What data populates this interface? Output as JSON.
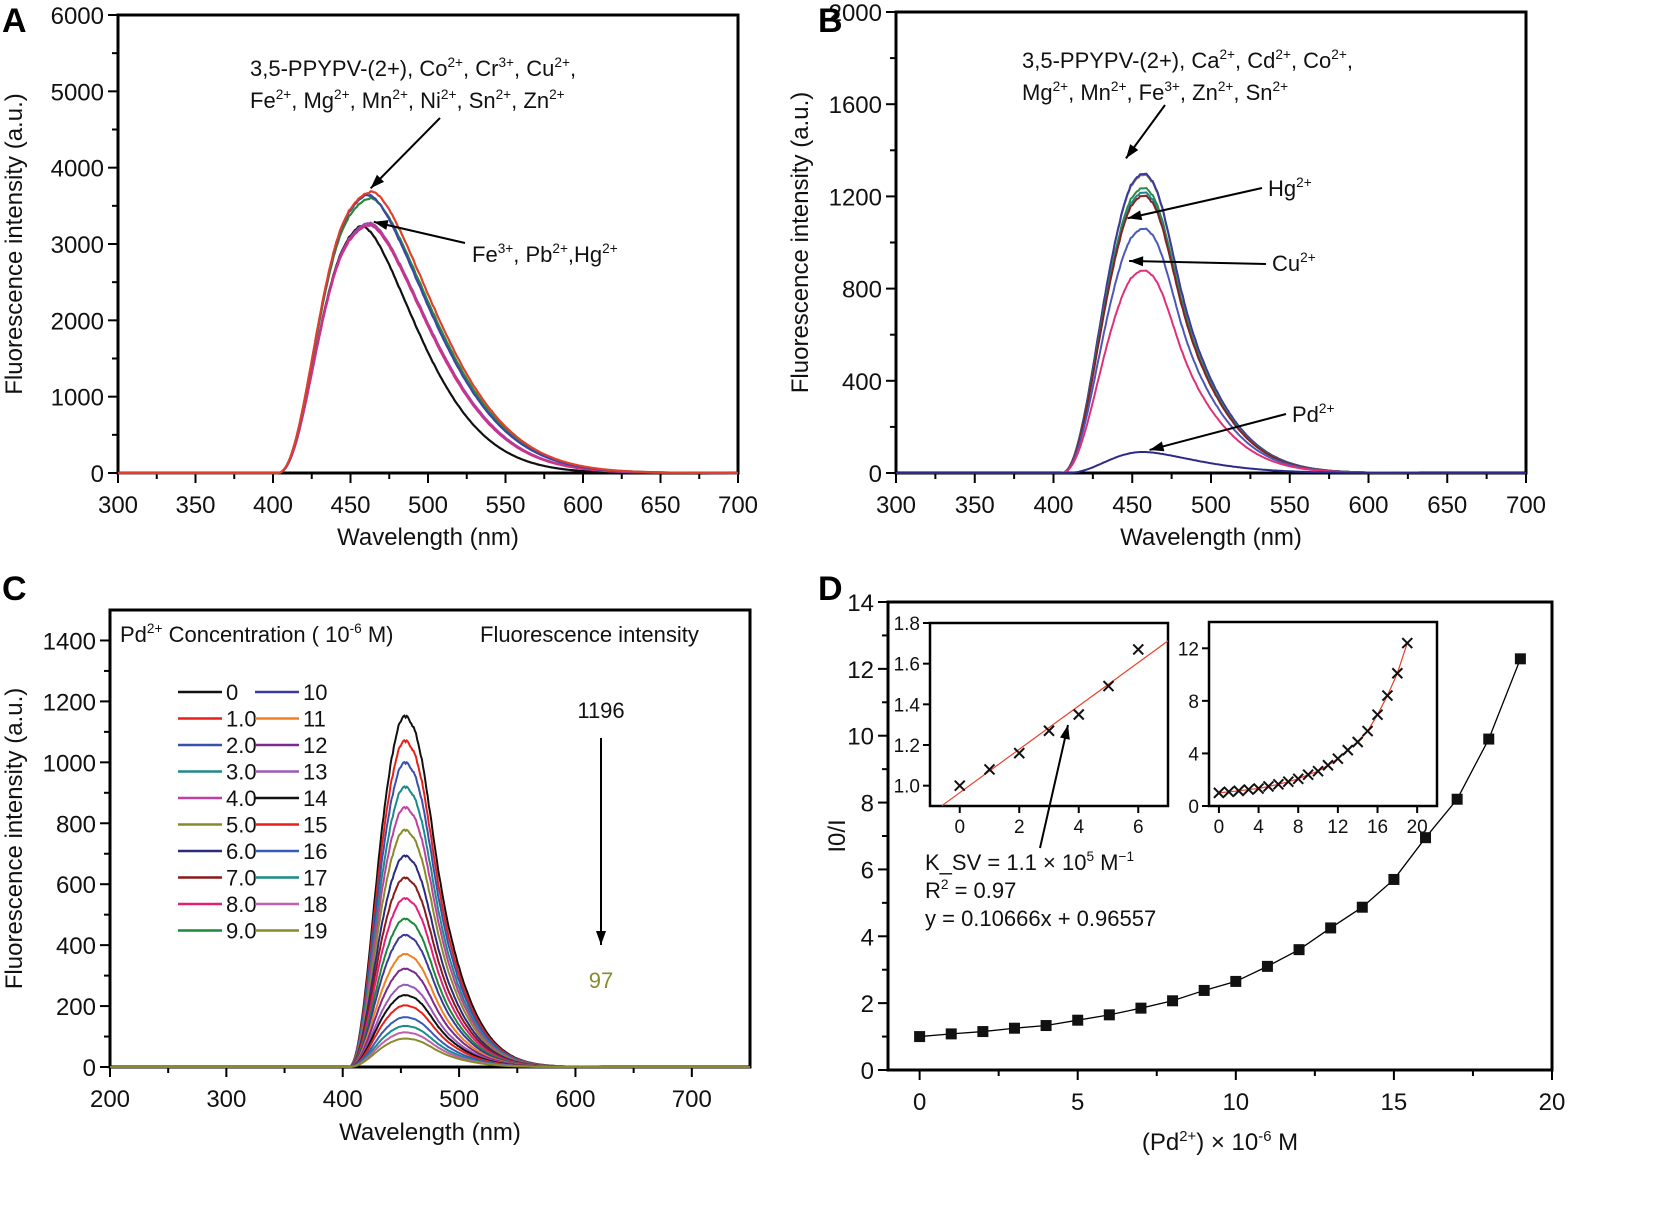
{
  "chart_data": [
    {
      "panel": "A",
      "type": "line",
      "xlabel": "Wavelength (nm)",
      "ylabel": "Fluorescence intensity (a.u.)",
      "xlim": [
        300,
        700
      ],
      "ylim": [
        0,
        6000
      ],
      "xticks": [
        300,
        350,
        400,
        450,
        500,
        550,
        600,
        650,
        700
      ],
      "yticks": [
        0,
        1000,
        2000,
        3000,
        4000,
        5000,
        6000
      ],
      "annotations": [
        {
          "lines": [
            "3,5-PPYPV-(2+), Co^2+, Cr^3+, Cu^2+,",
            "Fe^2+, Mg^2+, Mn^2+, Ni^2+, Sn^2+, Zn^2+"
          ],
          "points_to_peak": 3720
        },
        {
          "lines": [
            "Fe^3+, Pb^2+,Hg^2+"
          ],
          "points_to_peak": 3300
        }
      ],
      "series": [
        {
          "name": "orange-red",
          "color": "#e0402a",
          "peak_x": 463,
          "peak": 3720,
          "width_scale": 1.0
        },
        {
          "name": "blue",
          "color": "#3a46a8",
          "peak_x": 460,
          "peak": 3700,
          "width_scale": 1.0
        },
        {
          "name": "green",
          "color": "#2a8a3a",
          "peak_x": 462,
          "peak": 3640,
          "width_scale": 1.0
        },
        {
          "name": "magenta",
          "color": "#d0308a",
          "peak_x": 461,
          "peak": 3290,
          "width_scale": 0.96
        },
        {
          "name": "purple",
          "color": "#9a4aa8",
          "peak_x": 461,
          "peak": 3320,
          "width_scale": 0.97
        },
        {
          "name": "black",
          "color": "#111111",
          "peak_x": 455,
          "peak": 3340,
          "width_scale": 0.9
        }
      ]
    },
    {
      "panel": "B",
      "type": "line",
      "xlabel": "Wavelength (nm)",
      "ylabel": "Fluorescence intensity (a.u.)",
      "xlim": [
        300,
        700
      ],
      "ylim": [
        0,
        2000
      ],
      "xticks": [
        300,
        350,
        400,
        450,
        500,
        550,
        600,
        650,
        700
      ],
      "yticks": [
        0,
        400,
        800,
        1200,
        1600,
        2000
      ],
      "annotations": [
        {
          "lines": [
            "3,5-PPYPV-(2+), Ca^2+, Cd^2+, Co^2+,",
            "Mg^2+, Mn^2+, Fe^3+, Zn^2+, Sn^2+"
          ],
          "points_to_peak": 1360
        },
        {
          "lines": [
            "Hg^2+"
          ],
          "points_to_peak": 1110
        },
        {
          "lines": [
            "Cu^2+"
          ],
          "points_to_peak": 920
        },
        {
          "lines": [
            "Pd^2+"
          ],
          "points_to_peak": 100
        }
      ],
      "series": [
        {
          "name": "top-group-olive",
          "color": "#8a7a30",
          "peak_x": 446,
          "peak": 1355
        },
        {
          "name": "top-group-blue",
          "color": "#3a3aa0",
          "peak_x": 446,
          "peak": 1360
        },
        {
          "name": "top-group-green",
          "color": "#2a8a4a",
          "peak_x": 446,
          "peak": 1295
        },
        {
          "name": "top-group-teal",
          "color": "#1a8a8a",
          "peak_x": 446,
          "peak": 1275
        },
        {
          "name": "top-group-brown",
          "color": "#8a2020",
          "peak_x": 446,
          "peak": 1260
        },
        {
          "name": "Hg2+",
          "color": "#4a58b8",
          "peak_x": 446,
          "peak": 1110
        },
        {
          "name": "Cu2+",
          "color": "#e0307a",
          "peak_x": 446,
          "peak": 920
        },
        {
          "name": "Pd2+",
          "color": "#2a2a8a",
          "peak_x": 450,
          "peak": 100
        }
      ]
    },
    {
      "panel": "C",
      "type": "line",
      "xlabel": "Wavelength (nm)",
      "ylabel": "Fluorescence intensity (a.u.)",
      "xlim": [
        200,
        750
      ],
      "ylim": [
        0,
        1500
      ],
      "xticks": [
        200,
        300,
        400,
        500,
        600,
        700
      ],
      "yticks": [
        0,
        200,
        400,
        600,
        800,
        1000,
        1200,
        1400
      ],
      "legend_title": "Pd^2+ Concentration ( 10^-6 M)",
      "legend_position": "top-left",
      "intensity_header": "Fluorescence intensity",
      "intensity_start": "1196",
      "intensity_end": "97",
      "series": [
        {
          "name": "0",
          "color": "#111111",
          "peak": 1196
        },
        {
          "name": "1.0",
          "color": "#e8201a",
          "peak": 1112
        },
        {
          "name": "2.0",
          "color": "#3a50b0",
          "peak": 1038
        },
        {
          "name": "3.0",
          "color": "#1a8a8a",
          "peak": 955
        },
        {
          "name": "4.0",
          "color": "#c040a0",
          "peak": 885
        },
        {
          "name": "5.0",
          "color": "#8a8a2a",
          "peak": 808
        },
        {
          "name": "6.0",
          "color": "#2a2a80",
          "peak": 720
        },
        {
          "name": "7.0",
          "color": "#8a1a1a",
          "peak": 645
        },
        {
          "name": "8.0",
          "color": "#e0207a",
          "peak": 575
        },
        {
          "name": "9.0",
          "color": "#1a8a3a",
          "peak": 505
        },
        {
          "name": "10",
          "color": "#3a3a9a",
          "peak": 450
        },
        {
          "name": "11",
          "color": "#f08020",
          "peak": 385
        },
        {
          "name": "12",
          "color": "#7a2a8a",
          "peak": 335
        },
        {
          "name": "13",
          "color": "#9a5ab8",
          "peak": 280
        },
        {
          "name": "14",
          "color": "#111111",
          "peak": 245
        },
        {
          "name": "15",
          "color": "#e8201a",
          "peak": 210
        },
        {
          "name": "16",
          "color": "#3a5ab8",
          "peak": 170
        },
        {
          "name": "17",
          "color": "#1a8a8a",
          "peak": 140
        },
        {
          "name": "18",
          "color": "#c060b0",
          "peak": 118
        },
        {
          "name": "19",
          "color": "#8a8a2a",
          "peak": 97
        }
      ]
    },
    {
      "panel": "D",
      "type": "scatter",
      "xlabel": "(Pd^2+) x 10^-6 M",
      "ylabel": "I0/I",
      "xlim": [
        -1,
        20
      ],
      "ylim": [
        0,
        14
      ],
      "xticks": [
        0,
        5,
        10,
        15,
        20
      ],
      "yticks": [
        0,
        2,
        4,
        6,
        8,
        10,
        12,
        14
      ],
      "x": [
        0,
        1,
        2,
        3,
        4,
        5,
        6,
        7,
        8,
        9,
        10,
        11,
        12,
        13,
        14,
        15,
        16,
        17,
        18,
        19
      ],
      "y": [
        1.0,
        1.08,
        1.15,
        1.25,
        1.33,
        1.49,
        1.65,
        1.85,
        2.07,
        2.38,
        2.65,
        3.1,
        3.6,
        4.25,
        4.87,
        5.7,
        6.95,
        8.1,
        9.9,
        12.3
      ],
      "annotation": {
        "ksv": "K_SV = 1.1 × 10^5 M^-1",
        "r2": "R^2 = 0.97",
        "equation": "y = 0.10666x + 0.96557"
      },
      "insets": [
        {
          "type": "scatter",
          "xlim": [
            -1,
            7
          ],
          "ylim": [
            0.9,
            1.8
          ],
          "xticks": [
            0,
            2,
            4,
            6
          ],
          "yticks": [
            1.0,
            1.2,
            1.4,
            1.6,
            1.8
          ],
          "x": [
            0,
            1,
            2,
            3,
            4,
            5,
            6
          ],
          "y": [
            1.0,
            1.08,
            1.16,
            1.27,
            1.35,
            1.49,
            1.67
          ],
          "fit": {
            "slope": 0.10666,
            "intercept": 0.96557,
            "color": "#e8402a"
          }
        },
        {
          "type": "scatter",
          "xlim": [
            -1,
            22
          ],
          "ylim": [
            0,
            14
          ],
          "xticks": [
            0,
            4,
            8,
            12,
            16,
            20
          ],
          "yticks": [
            0,
            4,
            8,
            12
          ],
          "x": [
            0,
            1,
            2,
            3,
            4,
            5,
            6,
            7,
            8,
            9,
            10,
            11,
            12,
            13,
            14,
            15,
            16,
            17,
            18,
            19
          ],
          "y": [
            1.0,
            1.08,
            1.15,
            1.25,
            1.33,
            1.49,
            1.65,
            1.85,
            2.07,
            2.38,
            2.65,
            3.1,
            3.6,
            4.25,
            4.87,
            5.7,
            6.95,
            8.4,
            10.1,
            12.4
          ],
          "fit_color": "#e8402a"
        }
      ]
    }
  ],
  "labels": {
    "A": "A",
    "B": "B",
    "C": "C",
    "D": "D"
  }
}
